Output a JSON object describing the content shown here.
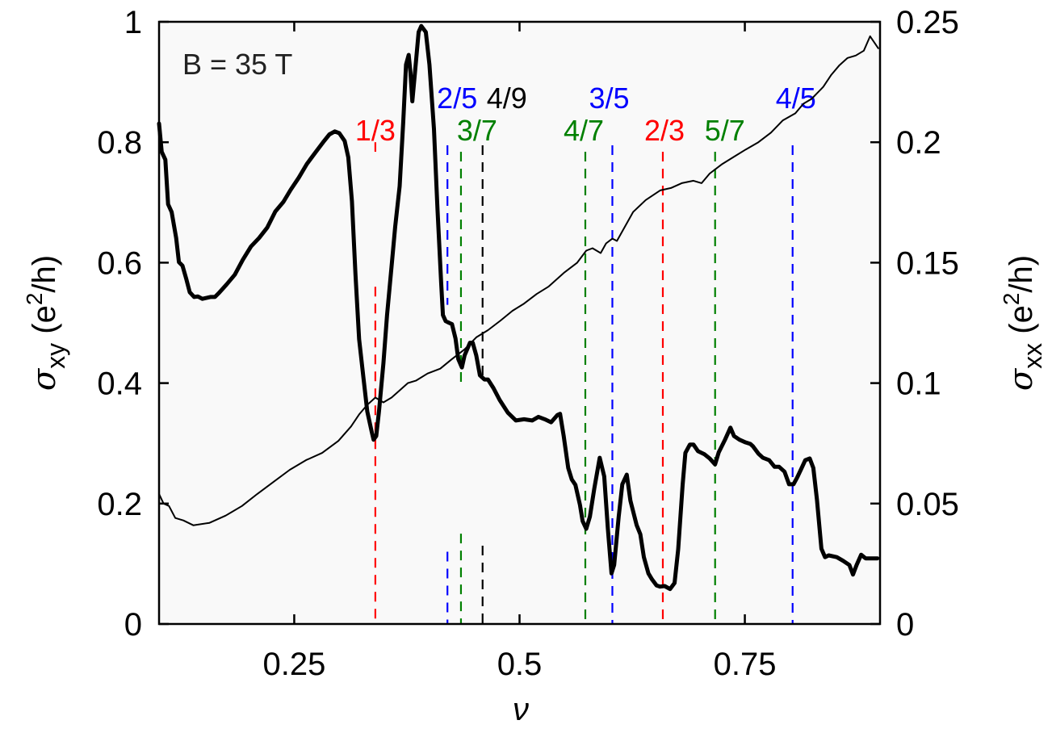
{
  "chart_data": {
    "type": "line",
    "title": "",
    "annotation": "B = 35 T",
    "xlabel": "ν",
    "ylabel_left": {
      "symbol": "σ",
      "sub": "xy",
      "unit_pre": " (e",
      "sup": "2",
      "unit_post": "/h)"
    },
    "ylabel_right": {
      "symbol": "σ",
      "sub": "xx",
      "unit_pre": " (e",
      "sup": "2",
      "unit_post": "/h)"
    },
    "xlim": [
      0.1,
      0.9
    ],
    "ylim_left": [
      0,
      1
    ],
    "ylim_right": [
      0,
      0.25
    ],
    "xticks": [
      {
        "v": 0.25,
        "label": "0.25"
      },
      {
        "v": 0.5,
        "label": "0.5"
      },
      {
        "v": 0.75,
        "label": "0.75"
      }
    ],
    "yticks_left": [
      {
        "v": 0,
        "label": "0"
      },
      {
        "v": 0.2,
        "label": "0.2"
      },
      {
        "v": 0.4,
        "label": "0.4"
      },
      {
        "v": 0.6,
        "label": "0.6"
      },
      {
        "v": 0.8,
        "label": "0.8"
      },
      {
        "v": 1,
        "label": "1"
      }
    ],
    "yticks_right": [
      {
        "v": 0,
        "label": "0"
      },
      {
        "v": 0.05,
        "label": "0.05"
      },
      {
        "v": 0.1,
        "label": "0.1"
      },
      {
        "v": 0.15,
        "label": "0.15"
      },
      {
        "v": 0.2,
        "label": "0.2"
      },
      {
        "v": 0.25,
        "label": "0.25"
      }
    ],
    "grid": false,
    "background": "#f9f9f9",
    "fractions": [
      {
        "label": "1/3",
        "nu": 0.34,
        "color": "#ff0000",
        "label_row": 2,
        "label_dx": 0,
        "gap": [
          0.56,
          0.8
        ]
      },
      {
        "label": "2/5",
        "nu": 0.42,
        "color": "#0000ff",
        "label_row": 1,
        "label_dx": 12,
        "gap": [
          0.12,
          0.53
        ]
      },
      {
        "label": "3/7",
        "nu": 0.435,
        "color": "#008000",
        "label_row": 2,
        "label_dx": 20,
        "gap": [
          0.15,
          0.4
        ]
      },
      {
        "label": "4/9",
        "nu": 0.459,
        "color": "#000000",
        "label_row": 1,
        "label_dx": 30,
        "gap": [
          0.13,
          0.41
        ]
      },
      {
        "label": "4/7",
        "nu": 0.573,
        "color": "#008000",
        "label_row": 2,
        "label_dx": -2,
        "gap": null
      },
      {
        "label": "3/5",
        "nu": 0.603,
        "color": "#0000ff",
        "label_row": 1,
        "label_dx": -4,
        "gap": null
      },
      {
        "label": "2/3",
        "nu": 0.659,
        "color": "#ff0000",
        "label_row": 2,
        "label_dx": 2,
        "gap": null
      },
      {
        "label": "5/7",
        "nu": 0.717,
        "color": "#008000",
        "label_row": 2,
        "label_dx": 12,
        "gap": null
      },
      {
        "label": "4/5",
        "nu": 0.803,
        "color": "#0000ff",
        "label_row": 1,
        "label_dx": 4,
        "gap": null
      }
    ],
    "series": [
      {
        "name": "sigma_xy (thick, left axis)",
        "axis": "left",
        "stroke_width": 5,
        "color": "#000000",
        "points": [
          [
            0.1,
            0.831
          ],
          [
            0.103,
            0.784
          ],
          [
            0.107,
            0.771
          ],
          [
            0.11,
            0.697
          ],
          [
            0.114,
            0.684
          ],
          [
            0.119,
            0.641
          ],
          [
            0.122,
            0.601
          ],
          [
            0.126,
            0.595
          ],
          [
            0.13,
            0.574
          ],
          [
            0.134,
            0.551
          ],
          [
            0.139,
            0.543
          ],
          [
            0.143,
            0.544
          ],
          [
            0.148,
            0.54
          ],
          [
            0.157,
            0.543
          ],
          [
            0.162,
            0.543
          ],
          [
            0.166,
            0.549
          ],
          [
            0.175,
            0.564
          ],
          [
            0.184,
            0.58
          ],
          [
            0.193,
            0.605
          ],
          [
            0.202,
            0.627
          ],
          [
            0.211,
            0.641
          ],
          [
            0.22,
            0.658
          ],
          [
            0.229,
            0.685
          ],
          [
            0.238,
            0.701
          ],
          [
            0.246,
            0.721
          ],
          [
            0.255,
            0.741
          ],
          [
            0.264,
            0.764
          ],
          [
            0.273,
            0.782
          ],
          [
            0.282,
            0.8
          ],
          [
            0.289,
            0.813
          ],
          [
            0.295,
            0.818
          ],
          [
            0.3,
            0.815
          ],
          [
            0.306,
            0.802
          ],
          [
            0.31,
            0.775
          ],
          [
            0.314,
            0.702
          ],
          [
            0.318,
            0.58
          ],
          [
            0.322,
            0.473
          ],
          [
            0.327,
            0.406
          ],
          [
            0.331,
            0.353
          ],
          [
            0.336,
            0.319
          ],
          [
            0.338,
            0.306
          ],
          [
            0.341,
            0.312
          ],
          [
            0.344,
            0.353
          ],
          [
            0.349,
            0.433
          ],
          [
            0.353,
            0.513
          ],
          [
            0.358,
            0.594
          ],
          [
            0.362,
            0.66
          ],
          [
            0.367,
            0.727
          ],
          [
            0.371,
            0.835
          ],
          [
            0.374,
            0.929
          ],
          [
            0.377,
            0.945
          ],
          [
            0.379,
            0.916
          ],
          [
            0.381,
            0.868
          ],
          [
            0.384,
            0.916
          ],
          [
            0.388,
            0.983
          ],
          [
            0.391,
            0.993
          ],
          [
            0.396,
            0.983
          ],
          [
            0.4,
            0.929
          ],
          [
            0.405,
            0.822
          ],
          [
            0.409,
            0.688
          ],
          [
            0.413,
            0.567
          ],
          [
            0.415,
            0.513
          ],
          [
            0.418,
            0.503
          ],
          [
            0.422,
            0.5
          ],
          [
            0.425,
            0.498
          ],
          [
            0.429,
            0.474
          ],
          [
            0.432,
            0.44
          ],
          [
            0.436,
            0.426
          ],
          [
            0.439,
            0.446
          ],
          [
            0.445,
            0.467
          ],
          [
            0.448,
            0.467
          ],
          [
            0.452,
            0.446
          ],
          [
            0.456,
            0.413
          ],
          [
            0.461,
            0.406
          ],
          [
            0.465,
            0.406
          ],
          [
            0.471,
            0.392
          ],
          [
            0.478,
            0.372
          ],
          [
            0.487,
            0.351
          ],
          [
            0.496,
            0.338
          ],
          [
            0.505,
            0.34
          ],
          [
            0.514,
            0.338
          ],
          [
            0.521,
            0.344
          ],
          [
            0.528,
            0.34
          ],
          [
            0.535,
            0.335
          ],
          [
            0.542,
            0.347
          ],
          [
            0.545,
            0.349
          ],
          [
            0.549,
            0.312
          ],
          [
            0.554,
            0.259
          ],
          [
            0.558,
            0.24
          ],
          [
            0.562,
            0.231
          ],
          [
            0.567,
            0.198
          ],
          [
            0.57,
            0.171
          ],
          [
            0.574,
            0.158
          ],
          [
            0.578,
            0.178
          ],
          [
            0.583,
            0.225
          ],
          [
            0.589,
            0.276
          ],
          [
            0.594,
            0.245
          ],
          [
            0.598,
            0.158
          ],
          [
            0.602,
            0.084
          ],
          [
            0.605,
            0.098
          ],
          [
            0.61,
            0.178
          ],
          [
            0.614,
            0.232
          ],
          [
            0.619,
            0.248
          ],
          [
            0.623,
            0.205
          ],
          [
            0.63,
            0.164
          ],
          [
            0.634,
            0.149
          ],
          [
            0.638,
            0.111
          ],
          [
            0.643,
            0.084
          ],
          [
            0.647,
            0.074
          ],
          [
            0.652,
            0.064
          ],
          [
            0.656,
            0.062
          ],
          [
            0.661,
            0.063
          ],
          [
            0.667,
            0.058
          ],
          [
            0.672,
            0.068
          ],
          [
            0.676,
            0.124
          ],
          [
            0.681,
            0.231
          ],
          [
            0.684,
            0.284
          ],
          [
            0.689,
            0.298
          ],
          [
            0.693,
            0.298
          ],
          [
            0.698,
            0.287
          ],
          [
            0.705,
            0.282
          ],
          [
            0.711,
            0.275
          ],
          [
            0.717,
            0.265
          ],
          [
            0.721,
            0.285
          ],
          [
            0.728,
            0.306
          ],
          [
            0.734,
            0.326
          ],
          [
            0.738,
            0.312
          ],
          [
            0.744,
            0.306
          ],
          [
            0.75,
            0.302
          ],
          [
            0.756,
            0.299
          ],
          [
            0.759,
            0.295
          ],
          [
            0.765,
            0.283
          ],
          [
            0.77,
            0.276
          ],
          [
            0.777,
            0.272
          ],
          [
            0.783,
            0.261
          ],
          [
            0.788,
            0.261
          ],
          [
            0.794,
            0.253
          ],
          [
            0.799,
            0.232
          ],
          [
            0.804,
            0.232
          ],
          [
            0.808,
            0.243
          ],
          [
            0.813,
            0.259
          ],
          [
            0.817,
            0.272
          ],
          [
            0.822,
            0.275
          ],
          [
            0.826,
            0.259
          ],
          [
            0.83,
            0.206
          ],
          [
            0.835,
            0.125
          ],
          [
            0.839,
            0.111
          ],
          [
            0.843,
            0.114
          ],
          [
            0.852,
            0.111
          ],
          [
            0.859,
            0.105
          ],
          [
            0.866,
            0.098
          ],
          [
            0.87,
            0.082
          ],
          [
            0.874,
            0.098
          ],
          [
            0.879,
            0.115
          ],
          [
            0.884,
            0.109
          ],
          [
            0.89,
            0.109
          ],
          [
            0.897,
            0.109
          ]
        ]
      },
      {
        "name": "sigma_xx (thin, right axis)",
        "axis": "right",
        "stroke_width": 2,
        "color": "#000000",
        "points": [
          [
            0.1,
            0.054
          ],
          [
            0.105,
            0.05
          ],
          [
            0.111,
            0.049
          ],
          [
            0.118,
            0.044
          ],
          [
            0.127,
            0.043
          ],
          [
            0.138,
            0.041
          ],
          [
            0.156,
            0.042
          ],
          [
            0.174,
            0.045
          ],
          [
            0.192,
            0.049
          ],
          [
            0.209,
            0.054
          ],
          [
            0.227,
            0.059
          ],
          [
            0.245,
            0.064
          ],
          [
            0.263,
            0.068
          ],
          [
            0.281,
            0.071
          ],
          [
            0.299,
            0.076
          ],
          [
            0.313,
            0.082
          ],
          [
            0.322,
            0.087
          ],
          [
            0.331,
            0.091
          ],
          [
            0.34,
            0.094
          ],
          [
            0.349,
            0.092
          ],
          [
            0.358,
            0.094
          ],
          [
            0.367,
            0.097
          ],
          [
            0.376,
            0.1
          ],
          [
            0.385,
            0.101
          ],
          [
            0.398,
            0.104
          ],
          [
            0.412,
            0.106
          ],
          [
            0.425,
            0.11
          ],
          [
            0.439,
            0.114
          ],
          [
            0.452,
            0.119
          ],
          [
            0.465,
            0.122
          ],
          [
            0.479,
            0.126
          ],
          [
            0.492,
            0.13
          ],
          [
            0.505,
            0.133
          ],
          [
            0.519,
            0.137
          ],
          [
            0.532,
            0.14
          ],
          [
            0.55,
            0.146
          ],
          [
            0.564,
            0.15
          ],
          [
            0.574,
            0.155
          ],
          [
            0.581,
            0.156
          ],
          [
            0.59,
            0.154
          ],
          [
            0.596,
            0.158
          ],
          [
            0.603,
            0.16
          ],
          [
            0.608,
            0.159
          ],
          [
            0.617,
            0.165
          ],
          [
            0.626,
            0.171
          ],
          [
            0.64,
            0.176
          ],
          [
            0.656,
            0.18
          ],
          [
            0.668,
            0.181
          ],
          [
            0.68,
            0.183
          ],
          [
            0.693,
            0.184
          ],
          [
            0.702,
            0.183
          ],
          [
            0.711,
            0.187
          ],
          [
            0.725,
            0.191
          ],
          [
            0.738,
            0.194
          ],
          [
            0.751,
            0.197
          ],
          [
            0.765,
            0.2
          ],
          [
            0.779,
            0.204
          ],
          [
            0.792,
            0.209
          ],
          [
            0.806,
            0.212
          ],
          [
            0.815,
            0.216
          ],
          [
            0.824,
            0.218
          ],
          [
            0.837,
            0.223
          ],
          [
            0.846,
            0.228
          ],
          [
            0.855,
            0.232
          ],
          [
            0.864,
            0.235
          ],
          [
            0.873,
            0.236
          ],
          [
            0.882,
            0.238
          ],
          [
            0.889,
            0.244
          ],
          [
            0.898,
            0.239
          ]
        ]
      }
    ]
  }
}
